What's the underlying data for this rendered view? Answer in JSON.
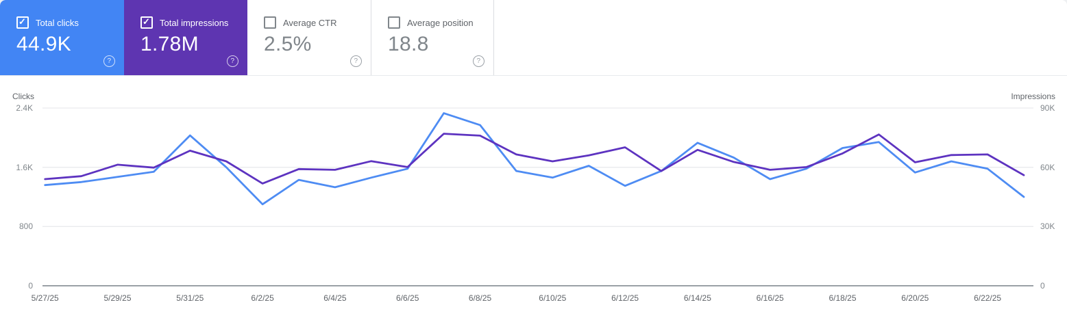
{
  "cards": [
    {
      "label": "Total clicks",
      "value": "44.9K",
      "checked": true,
      "bg": "#4285f4"
    },
    {
      "label": "Total impressions",
      "value": "1.78M",
      "checked": true,
      "bg": "#5e35b1"
    },
    {
      "label": "Average CTR",
      "value": "2.5%",
      "checked": false,
      "bg": "#ffffff"
    },
    {
      "label": "Average position",
      "value": "18.8",
      "checked": false,
      "bg": "#ffffff"
    }
  ],
  "chart_data": {
    "type": "line",
    "x": [
      "5/27/25",
      "5/28/25",
      "5/29/25",
      "5/30/25",
      "5/31/25",
      "6/1/25",
      "6/2/25",
      "6/3/25",
      "6/4/25",
      "6/5/25",
      "6/6/25",
      "6/7/25",
      "6/8/25",
      "6/9/25",
      "6/10/25",
      "6/11/25",
      "6/12/25",
      "6/13/25",
      "6/14/25",
      "6/15/25",
      "6/16/25",
      "6/17/25",
      "6/18/25",
      "6/19/25",
      "6/20/25",
      "6/21/25",
      "6/22/25",
      "6/23/25"
    ],
    "x_tick_labels": [
      "5/27/25",
      "5/29/25",
      "5/31/25",
      "6/2/25",
      "6/4/25",
      "6/6/25",
      "6/8/25",
      "6/10/25",
      "6/12/25",
      "6/14/25",
      "6/16/25",
      "6/18/25",
      "6/20/25",
      "6/22/25"
    ],
    "series": [
      {
        "name": "Clicks",
        "axis": "left",
        "color": "#4e8cf3",
        "values": [
          1360,
          1400,
          1470,
          1540,
          2030,
          1600,
          1100,
          1430,
          1330,
          1460,
          1580,
          2330,
          2170,
          1550,
          1460,
          1620,
          1350,
          1550,
          1930,
          1730,
          1440,
          1580,
          1860,
          1940,
          1530,
          1680,
          1580,
          1200
        ]
      },
      {
        "name": "Impressions",
        "axis": "right",
        "color": "#5d33c0",
        "values": [
          54000,
          55500,
          61300,
          59800,
          68400,
          63000,
          51800,
          59100,
          58700,
          63100,
          60100,
          77000,
          76000,
          66500,
          63000,
          66000,
          70100,
          58100,
          68800,
          62700,
          58700,
          60100,
          67000,
          76600,
          62500,
          66200,
          66500,
          56000
        ]
      }
    ],
    "left_axis": {
      "title": "Clicks",
      "range": [
        0,
        2400
      ],
      "ticks": [
        {
          "label": "0",
          "value": 0
        },
        {
          "label": "800",
          "value": 800
        },
        {
          "label": "1.6K",
          "value": 1600
        },
        {
          "label": "2.4K",
          "value": 2400
        }
      ]
    },
    "right_axis": {
      "title": "Impressions",
      "range": [
        0,
        90000
      ],
      "ticks": [
        {
          "label": "0",
          "value": 0
        },
        {
          "label": "30K",
          "value": 30000
        },
        {
          "label": "60K",
          "value": 60000
        },
        {
          "label": "90K",
          "value": 90000
        }
      ]
    },
    "grid": "horizontal",
    "grid_color": "#e9eaed",
    "baseline_color": "#9aa0a6"
  }
}
